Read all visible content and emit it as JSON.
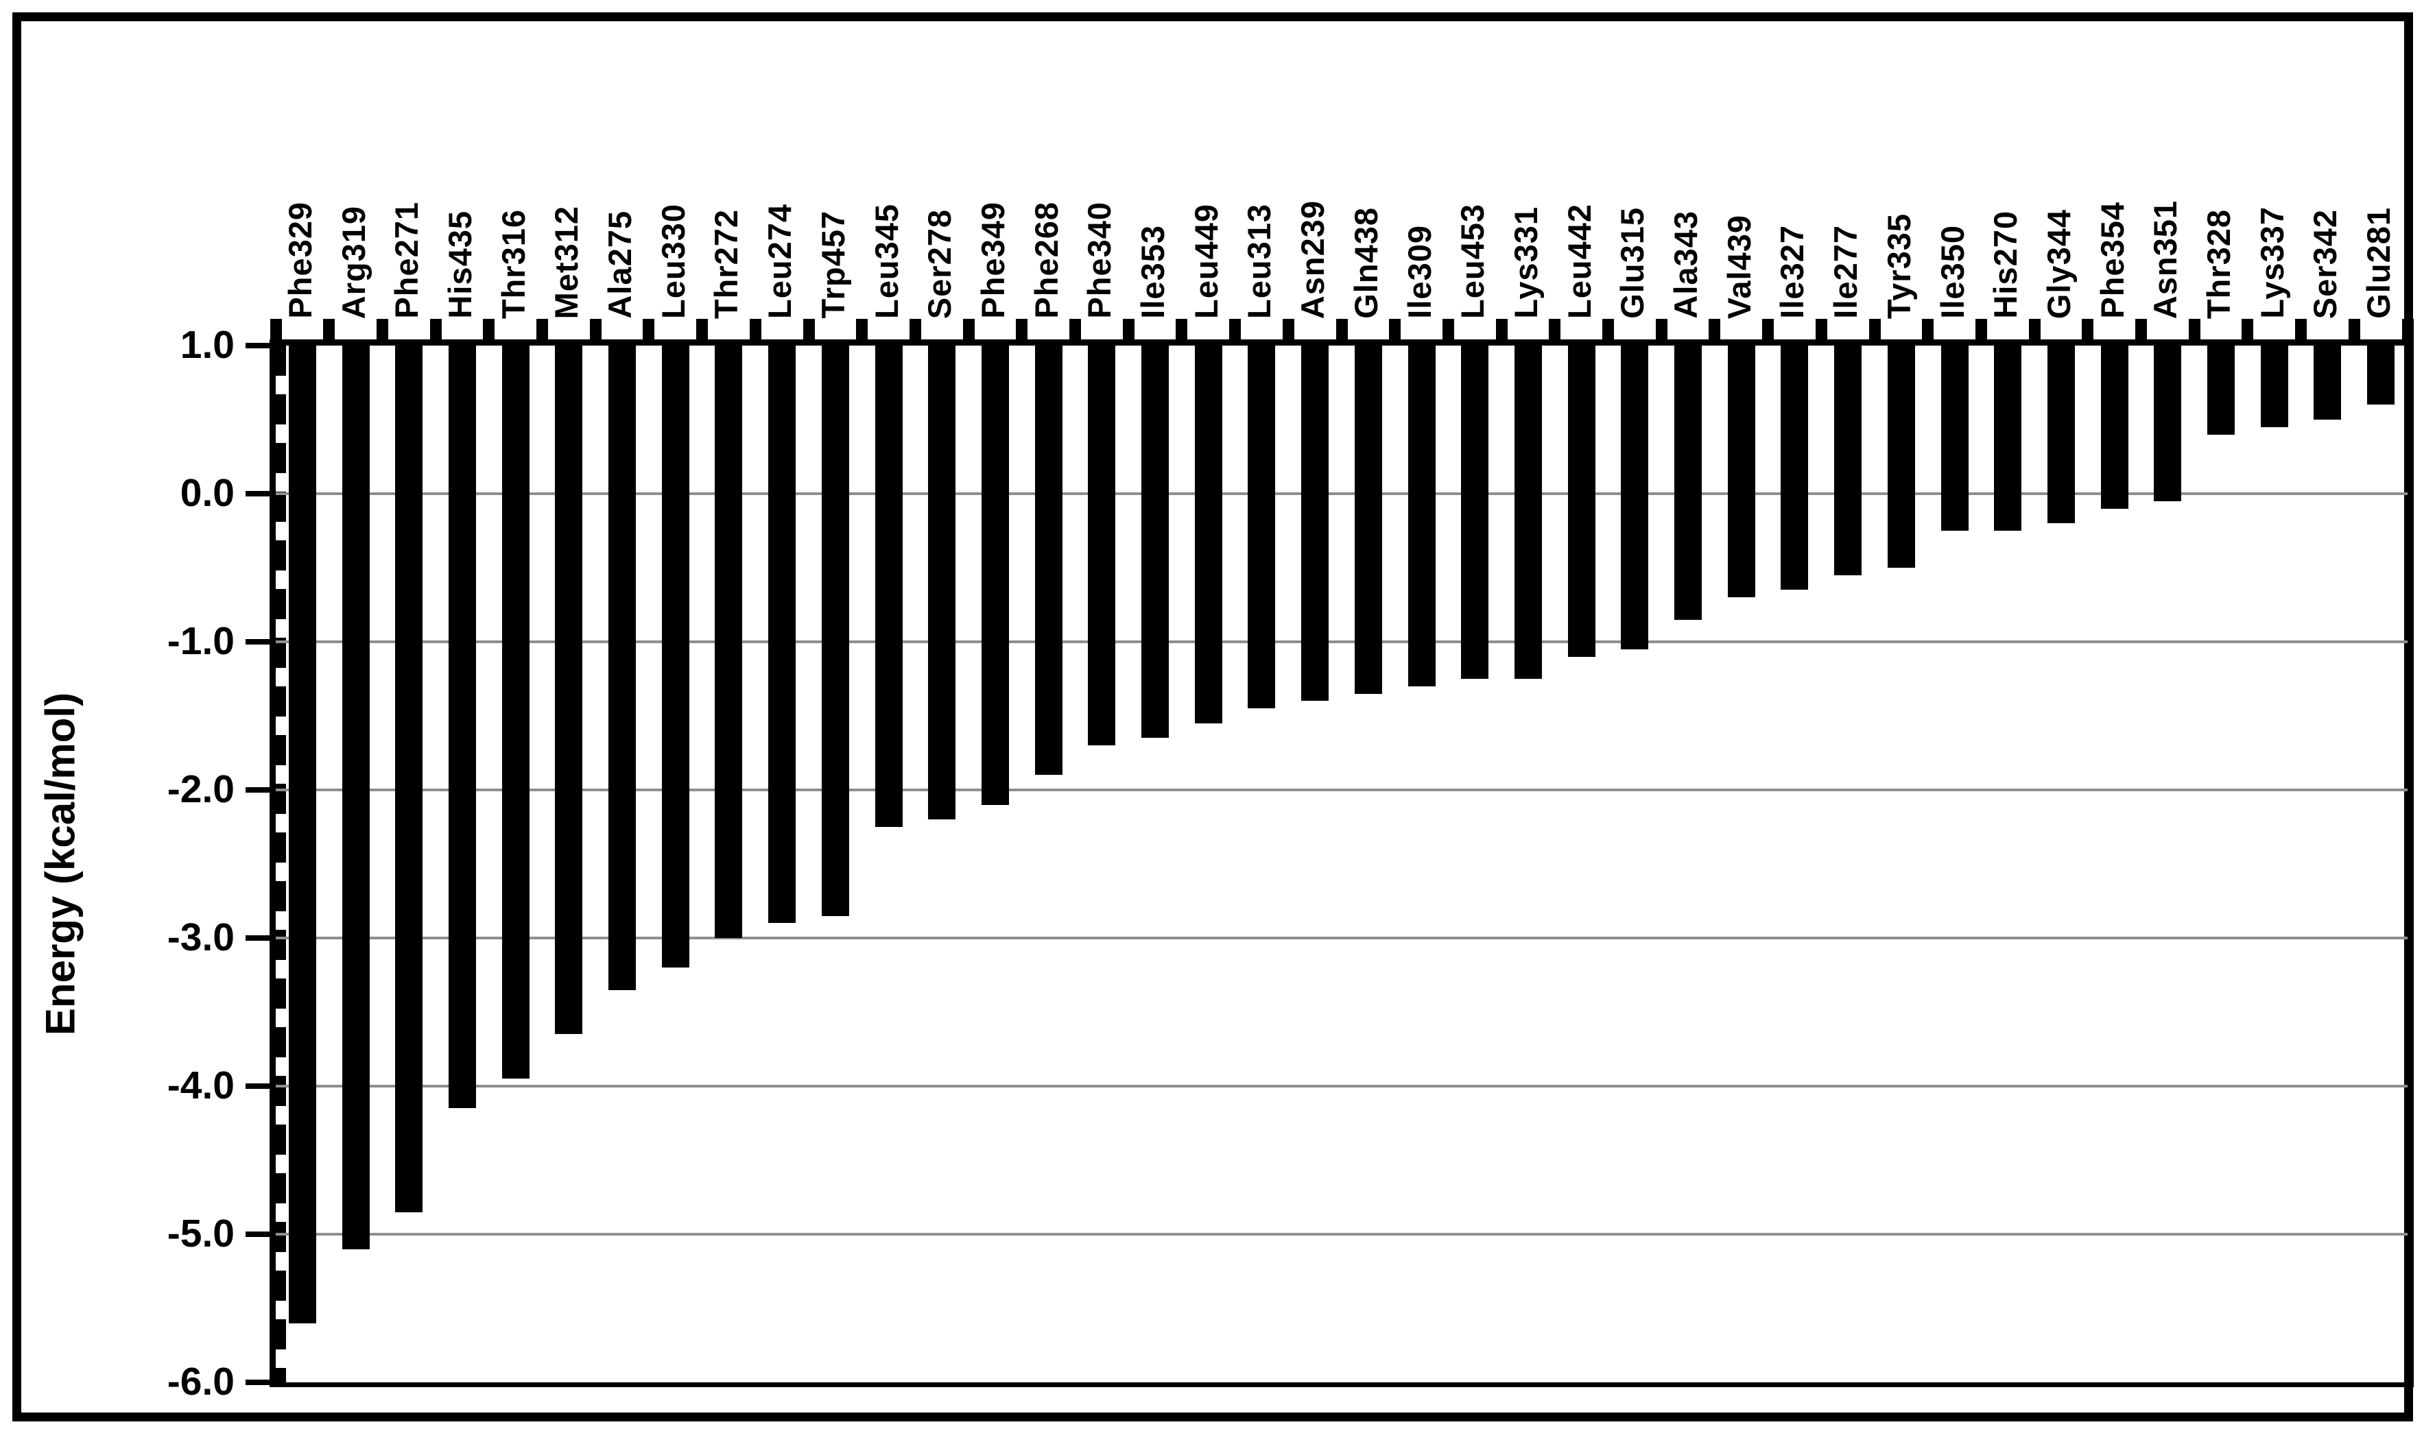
{
  "chart_data": {
    "type": "bar",
    "title": "",
    "xlabel": "",
    "ylabel": "Energy (kcal/mol)",
    "ylim": [
      -6.0,
      1.0
    ],
    "bar_baseline": 1.0,
    "bar_color": "#000000",
    "background_color": "#ffffff",
    "gridline_color": "#8f8f8f",
    "axis_color": "#000000",
    "grid": "horizontal",
    "legend": "none",
    "yticks": [
      1.0,
      0.0,
      -1.0,
      -2.0,
      -3.0,
      -4.0,
      -5.0,
      -6.0
    ],
    "ytick_labels": [
      "1.0",
      "0.0",
      "-1.0",
      "-2.0",
      "-3.0",
      "-4.0",
      "-5.0",
      "-6.0"
    ],
    "categories": [
      "Phe329",
      "Arg319",
      "Phe271",
      "His435",
      "Thr316",
      "Met312",
      "Ala275",
      "Leu330",
      "Thr272",
      "Leu274",
      "Trp457",
      "Leu345",
      "Ser278",
      "Phe349",
      "Phe268",
      "Phe340",
      "Ile353",
      "Leu449",
      "Leu313",
      "Asn239",
      "Gln438",
      "Ile309",
      "Leu453",
      "Lys331",
      "Leu442",
      "Glu315",
      "Ala343",
      "Val439",
      "Ile327",
      "Ile277",
      "Tyr335",
      "Ile350",
      "His270",
      "Gly344",
      "Phe354",
      "Asn351",
      "Thr328",
      "Lys337",
      "Ser342",
      "Glu281"
    ],
    "values": [
      -5.6,
      -5.1,
      -4.85,
      -4.15,
      -3.95,
      -3.65,
      -3.35,
      -3.2,
      -3.0,
      -2.9,
      -2.85,
      -2.25,
      -2.2,
      -2.1,
      -1.9,
      -1.7,
      -1.65,
      -1.55,
      -1.45,
      -1.4,
      -1.35,
      -1.3,
      -1.25,
      -1.25,
      -1.1,
      -1.05,
      -0.85,
      -0.7,
      -0.65,
      -0.55,
      -0.5,
      -0.25,
      -0.25,
      -0.2,
      -0.1,
      -0.05,
      0.4,
      0.45,
      0.5,
      0.6
    ]
  }
}
